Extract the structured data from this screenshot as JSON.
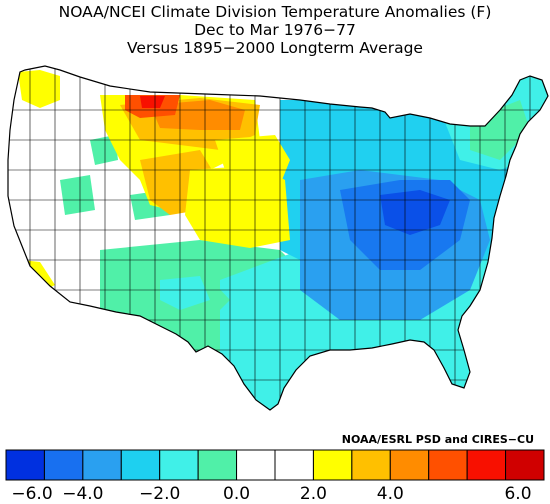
{
  "title": {
    "line1": "NOAA/NCEI Climate Division Temperature Anomalies (F)",
    "line2": "Dec to Mar 1976−77",
    "line3": "Versus 1895−2000 Longterm Average"
  },
  "credit": "NOAA/ESRL PSD and CIRES−CU",
  "legend": {
    "colors": [
      "#0030e0",
      "#1870f0",
      "#2aa0f0",
      "#1ed0f0",
      "#40f0e8",
      "#50f0a8",
      "#ffffff",
      "#ffffff",
      "#ffff00",
      "#ffc000",
      "#ff8c00",
      "#ff5000",
      "#f81000",
      "#d00000"
    ],
    "ticks": [
      "−6.0",
      "−4.0",
      "−2.0",
      "0.0",
      "2.0",
      "4.0",
      "6.0"
    ]
  },
  "palette": {
    "c_deep_blue": "#0a50e8",
    "c_blue": "#1878f0",
    "c_mid_blue": "#2aa0f0",
    "c_cyan": "#20d0f0",
    "c_aqua": "#40f0e8",
    "c_seafoam": "#50f0a8",
    "c_white": "#ffffff",
    "c_yellow": "#ffff00",
    "c_gold": "#ffc000",
    "c_orange": "#ff8c00",
    "c_red_orange": "#ff5000",
    "c_red": "#f81000",
    "outline": "#000000"
  }
}
